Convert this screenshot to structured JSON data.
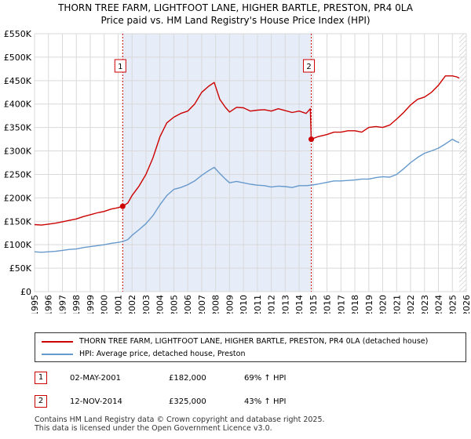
{
  "title_line1": "THORN TREE FARM, LIGHTFOOT LANE, HIGHER BARTLE, PRESTON, PR4 0LA",
  "title_line2": "Price paid vs. HM Land Registry's House Price Index (HPI)",
  "chart_data": {
    "type": "line",
    "title": "THORN TREE FARM, LIGHTFOOT LANE, HIGHER BARTLE, PRESTON, PR4 0LA",
    "subtitle": "Price paid vs. HM Land Registry's House Price Index (HPI)",
    "xlim": [
      1995,
      2026
    ],
    "ylim": [
      0,
      550000
    ],
    "x_ticks": [
      "1995",
      "1996",
      "1997",
      "1998",
      "1999",
      "2000",
      "2001",
      "2002",
      "2003",
      "2004",
      "2005",
      "2006",
      "2007",
      "2008",
      "2009",
      "2010",
      "2011",
      "2012",
      "2013",
      "2014",
      "2015",
      "2016",
      "2017",
      "2018",
      "2019",
      "2020",
      "2021",
      "2022",
      "2023",
      "2024",
      "2025",
      "2026"
    ],
    "y_ticks": [
      {
        "value": 0,
        "label": "£0"
      },
      {
        "value": 50000,
        "label": "£50K"
      },
      {
        "value": 100000,
        "label": "£100K"
      },
      {
        "value": 150000,
        "label": "£150K"
      },
      {
        "value": 200000,
        "label": "£200K"
      },
      {
        "value": 250000,
        "label": "£250K"
      },
      {
        "value": 300000,
        "label": "£300K"
      },
      {
        "value": 350000,
        "label": "£350K"
      },
      {
        "value": 400000,
        "label": "£400K"
      },
      {
        "value": 450000,
        "label": "£450K"
      },
      {
        "value": 500000,
        "label": "£500K"
      },
      {
        "value": 550000,
        "label": "£550K"
      }
    ],
    "grid": true,
    "series": [
      {
        "name": "THORN TREE FARM, LIGHTFOOT LANE, HIGHER BARTLE, PRESTON, PR4 0LA (detached house)",
        "color": "#cc0000",
        "x": [
          1995.0,
          1995.5,
          1996.0,
          1996.5,
          1997.0,
          1997.5,
          1998.0,
          1998.5,
          1999.0,
          1999.5,
          2000.0,
          2000.5,
          2001.0,
          2001.33,
          2001.7,
          2002.0,
          2002.5,
          2003.0,
          2003.5,
          2004.0,
          2004.5,
          2005.0,
          2005.5,
          2006.0,
          2006.5,
          2007.0,
          2007.5,
          2007.9,
          2008.3,
          2008.7,
          2009.0,
          2009.5,
          2010.0,
          2010.5,
          2011.0,
          2011.5,
          2012.0,
          2012.5,
          2013.0,
          2013.5,
          2014.0,
          2014.5,
          2014.8,
          2014.87,
          2015.3,
          2016.0,
          2016.5,
          2017.0,
          2017.5,
          2018.0,
          2018.5,
          2019.0,
          2019.5,
          2020.0,
          2020.5,
          2021.0,
          2021.5,
          2022.0,
          2022.5,
          2023.0,
          2023.5,
          2024.0,
          2024.5,
          2025.0,
          2025.3,
          2025.5
        ],
        "values": [
          143000,
          142000,
          144000,
          146000,
          149000,
          152000,
          155000,
          160000,
          164000,
          168000,
          171000,
          176000,
          179000,
          182000,
          189000,
          205000,
          225000,
          250000,
          285000,
          330000,
          360000,
          372000,
          380000,
          385000,
          400000,
          425000,
          438000,
          446000,
          410000,
          393000,
          383000,
          393000,
          392000,
          385000,
          387000,
          388000,
          385000,
          390000,
          386000,
          382000,
          385000,
          380000,
          390000,
          325000,
          330000,
          335000,
          340000,
          340000,
          343000,
          343000,
          340000,
          350000,
          352000,
          350000,
          355000,
          368000,
          382000,
          398000,
          410000,
          415000,
          425000,
          440000,
          460000,
          460000,
          458000,
          455000
        ]
      },
      {
        "name": "HPI: Average price, detached house, Preston",
        "color": "#6699cc",
        "x": [
          1995.0,
          1995.5,
          1996.0,
          1996.5,
          1997.0,
          1997.5,
          1998.0,
          1998.5,
          1999.0,
          1999.5,
          2000.0,
          2000.5,
          2001.0,
          2001.33,
          2001.7,
          2002.0,
          2002.5,
          2003.0,
          2003.5,
          2004.0,
          2004.5,
          2005.0,
          2005.5,
          2006.0,
          2006.5,
          2007.0,
          2007.5,
          2007.9,
          2008.3,
          2008.7,
          2009.0,
          2009.5,
          2010.0,
          2010.5,
          2011.0,
          2011.5,
          2012.0,
          2012.5,
          2013.0,
          2013.5,
          2014.0,
          2014.5,
          2014.87,
          2015.3,
          2016.0,
          2016.5,
          2017.0,
          2017.5,
          2018.0,
          2018.5,
          2019.0,
          2019.5,
          2020.0,
          2020.5,
          2021.0,
          2021.5,
          2022.0,
          2022.5,
          2023.0,
          2023.5,
          2024.0,
          2024.5,
          2025.0,
          2025.3,
          2025.5
        ],
        "values": [
          85000,
          84000,
          85000,
          86000,
          88000,
          90000,
          91000,
          94000,
          96000,
          98000,
          100000,
          103000,
          105000,
          107000,
          111000,
          120000,
          132000,
          145000,
          162000,
          185000,
          205000,
          218000,
          222000,
          228000,
          236000,
          248000,
          258000,
          265000,
          252000,
          240000,
          232000,
          235000,
          232000,
          229000,
          227000,
          226000,
          223000,
          225000,
          224000,
          222000,
          226000,
          226000,
          227000,
          229000,
          233000,
          236000,
          236000,
          237000,
          238000,
          240000,
          240000,
          243000,
          245000,
          244000,
          250000,
          262000,
          275000,
          286000,
          295000,
          300000,
          306000,
          315000,
          325000,
          320000,
          318000
        ]
      }
    ],
    "markers": [
      {
        "label": "1",
        "x": 2001.33,
        "y": 182000
      },
      {
        "label": "2",
        "x": 2014.87,
        "y": 325000
      }
    ],
    "hatched_region_start": 2025.5
  },
  "legend": {
    "series1_label": "THORN TREE FARM, LIGHTFOOT LANE, HIGHER BARTLE, PRESTON, PR4 0LA (detached house)",
    "series2_label": "HPI: Average price, detached house, Preston",
    "series1_color": "#cc0000",
    "series2_color": "#6699cc"
  },
  "transactions": [
    {
      "num": "1",
      "date": "02-MAY-2001",
      "price": "£182,000",
      "pct": "69% ↑ HPI"
    },
    {
      "num": "2",
      "date": "12-NOV-2014",
      "price": "£325,000",
      "pct": "43% ↑ HPI"
    }
  ],
  "footer": {
    "line1": "Contains HM Land Registry data © Crown copyright and database right 2025.",
    "line2": "This data is licensed under the Open Government Licence v3.0."
  }
}
